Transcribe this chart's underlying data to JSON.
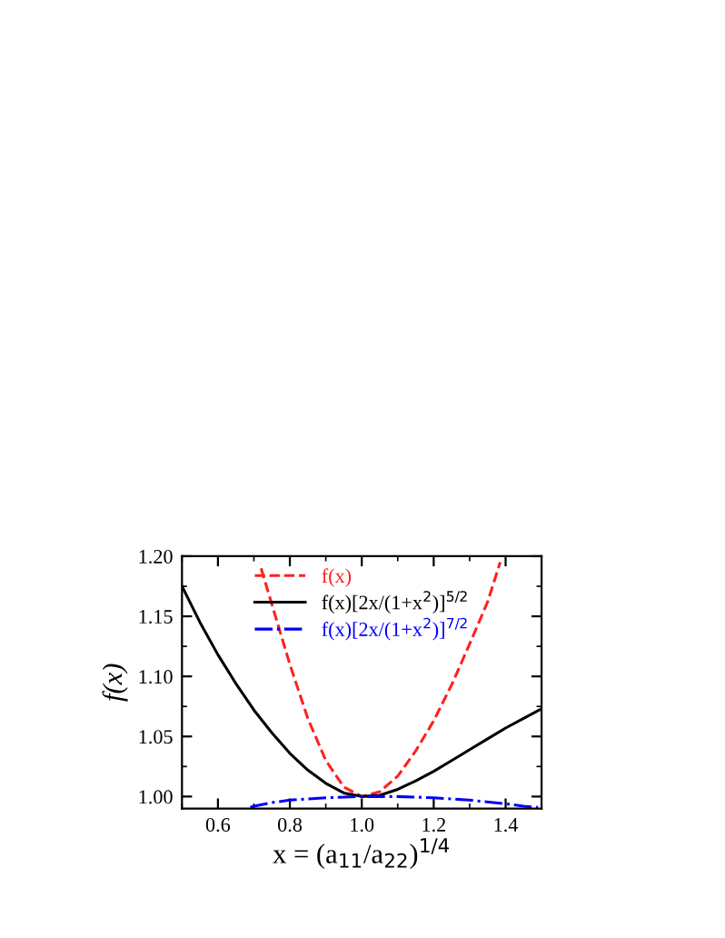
{
  "chart_data": {
    "type": "line",
    "xlabel": "x = (a$_{11}$/a$_{22}$)$^{1/4}$",
    "ylabel": "f(x)",
    "xlim": [
      0.5,
      1.5
    ],
    "ylim": [
      0.99,
      1.2
    ],
    "xticks": [
      0.6,
      0.8,
      {
        "value": 1.0,
        "label": "1.0"
      },
      1.2,
      1.4
    ],
    "yticks": [
      {
        "value": 1.0,
        "label": "1.00"
      },
      1.05,
      {
        "value": 1.1,
        "label": "1.10"
      },
      1.15,
      {
        "value": 1.2,
        "label": "1.20"
      }
    ],
    "legend": "top",
    "grid": false,
    "series": [
      {
        "name": "f(x)",
        "color": "#ff2020",
        "line_style": "dashed",
        "x": [
          0.72,
          0.75,
          0.8,
          0.85,
          0.9,
          0.95,
          1.0,
          1.05,
          1.1,
          1.15,
          1.2,
          1.25,
          1.3,
          1.35,
          1.385
        ],
        "values": [
          1.19,
          1.16,
          1.11,
          1.065,
          1.03,
          1.008,
          1.0,
          1.004,
          1.017,
          1.038,
          1.063,
          1.093,
          1.127,
          1.162,
          1.195
        ]
      },
      {
        "name": "f(x)[2x/(1+x$^{2}$)]$^{5/2}$",
        "color": "#000000",
        "line_style": "solid",
        "x": [
          0.5,
          0.55,
          0.6,
          0.65,
          0.7,
          0.75,
          0.8,
          0.85,
          0.9,
          0.95,
          1.0,
          1.05,
          1.1,
          1.15,
          1.2,
          1.25,
          1.3,
          1.35,
          1.4,
          1.45,
          1.5
        ],
        "values": [
          1.175,
          1.145,
          1.118,
          1.094,
          1.072,
          1.053,
          1.036,
          1.022,
          1.011,
          1.003,
          1.0,
          1.001,
          1.006,
          1.013,
          1.021,
          1.03,
          1.039,
          1.048,
          1.057,
          1.065,
          1.073
        ]
      },
      {
        "name": "f(x)[2x/(1+x$^{2}$)]$^{7/2}$",
        "color": "#0000ff",
        "line_style": "dashdot",
        "x": [
          0.69,
          0.7,
          0.75,
          0.8,
          0.9,
          1.0,
          1.1,
          1.2,
          1.3,
          1.4,
          1.45,
          1.49
        ],
        "values": [
          0.991,
          0.992,
          0.995,
          0.997,
          0.999,
          1.0,
          1.0,
          0.999,
          0.997,
          0.994,
          0.992,
          0.991
        ]
      }
    ]
  }
}
